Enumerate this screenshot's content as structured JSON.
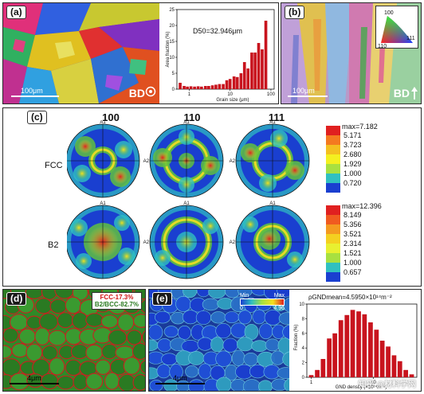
{
  "panel_a": {
    "label": "(a)",
    "scale_label": "100μm",
    "bd_label": "BD",
    "chart_data": {
      "type": "bar",
      "title": "D50=32.946μm",
      "xlabel": "Grain size (μm)",
      "ylabel": "Area fraction (%)",
      "x_scale": "log",
      "xlim": [
        0.5,
        120
      ],
      "ylim": [
        0,
        25
      ],
      "yticks": [
        0,
        5,
        10,
        15,
        20,
        25
      ],
      "xticks": [
        "1",
        "10",
        "100"
      ],
      "x": [
        0.6,
        0.75,
        0.9,
        1.1,
        1.35,
        1.65,
        2.0,
        2.5,
        3.0,
        3.7,
        4.5,
        5.5,
        6.8,
        8.3,
        10,
        12.5,
        15,
        18.5,
        22.5,
        27.5,
        34,
        41,
        50,
        61,
        75
      ],
      "values": [
        2.0,
        1.0,
        0.8,
        0.9,
        0.8,
        0.9,
        0.8,
        1.0,
        1.0,
        1.2,
        1.4,
        1.6,
        1.6,
        2.8,
        3.2,
        4.0,
        3.8,
        5.0,
        8.5,
        6.5,
        11.5,
        11.5,
        14.5,
        12.5,
        21.5
      ]
    }
  },
  "panel_b": {
    "label": "(b)",
    "scale_label": "100μm",
    "bd_label": "BD",
    "ipf": {
      "c100": "100",
      "c110": "110",
      "c111": "111"
    }
  },
  "panel_c": {
    "label": "(c)",
    "columns": [
      "100",
      "110",
      "111"
    ],
    "rows": [
      "FCC",
      "B2"
    ],
    "axis_a1": "A1",
    "axis_a2": "A2",
    "fcc_legend": {
      "max": "max=7.182",
      "values": [
        "5.171",
        "3.723",
        "2.680",
        "1.929",
        "1.000",
        "0.720"
      ],
      "colors": [
        "#e02020",
        "#f47a20",
        "#f4c020",
        "#f4f020",
        "#a8e040",
        "#30c0c0",
        "#1a3fd0"
      ]
    },
    "b2_legend": {
      "max": "max=12.396",
      "values": [
        "8.149",
        "5.356",
        "3.521",
        "2.314",
        "1.521",
        "1.000",
        "0.657"
      ],
      "colors": [
        "#e02020",
        "#f05a20",
        "#f49a20",
        "#f4d020",
        "#e8f030",
        "#a8e040",
        "#30c0c0",
        "#1a3fd0"
      ]
    }
  },
  "panel_d": {
    "label": "(d)",
    "fcc_text": "FCC-17.3%",
    "b2_text": "B2/BCC-82.7%",
    "scale_label": "4μm"
  },
  "panel_e": {
    "label": "(e)",
    "min_label": "Min",
    "max_label": "Max",
    "min_value": "0",
    "max_value": "4.96",
    "scale_label": "4μm",
    "chart_data": {
      "type": "bar",
      "title": "ρGNDmean=4.5950×10¹⁴m⁻²",
      "xlabel": "GND density (×10¹⁴m⁻²)",
      "ylabel": "Fraction (%)",
      "x_scale": "log",
      "ylim": [
        0,
        10
      ],
      "yticks": [
        0,
        2,
        4,
        6,
        8,
        10
      ],
      "xticks": [
        "1",
        "10"
      ],
      "x": [
        1.0,
        1.25,
        1.55,
        1.95,
        2.4,
        3.0,
        3.75,
        4.65,
        5.8,
        7.2,
        9.0,
        11.2,
        13.9,
        17.3,
        21.5,
        26.7,
        33.2,
        41.3
      ],
      "values": [
        0.3,
        1.0,
        2.5,
        5.3,
        6.0,
        7.8,
        8.5,
        9.2,
        9.0,
        8.6,
        7.5,
        6.5,
        5.0,
        4.2,
        3.0,
        2.2,
        1.0,
        0.4
      ]
    },
    "watermark": "知乎 @材料学网"
  },
  "colors": {
    "bar_red": "#c8141e"
  }
}
